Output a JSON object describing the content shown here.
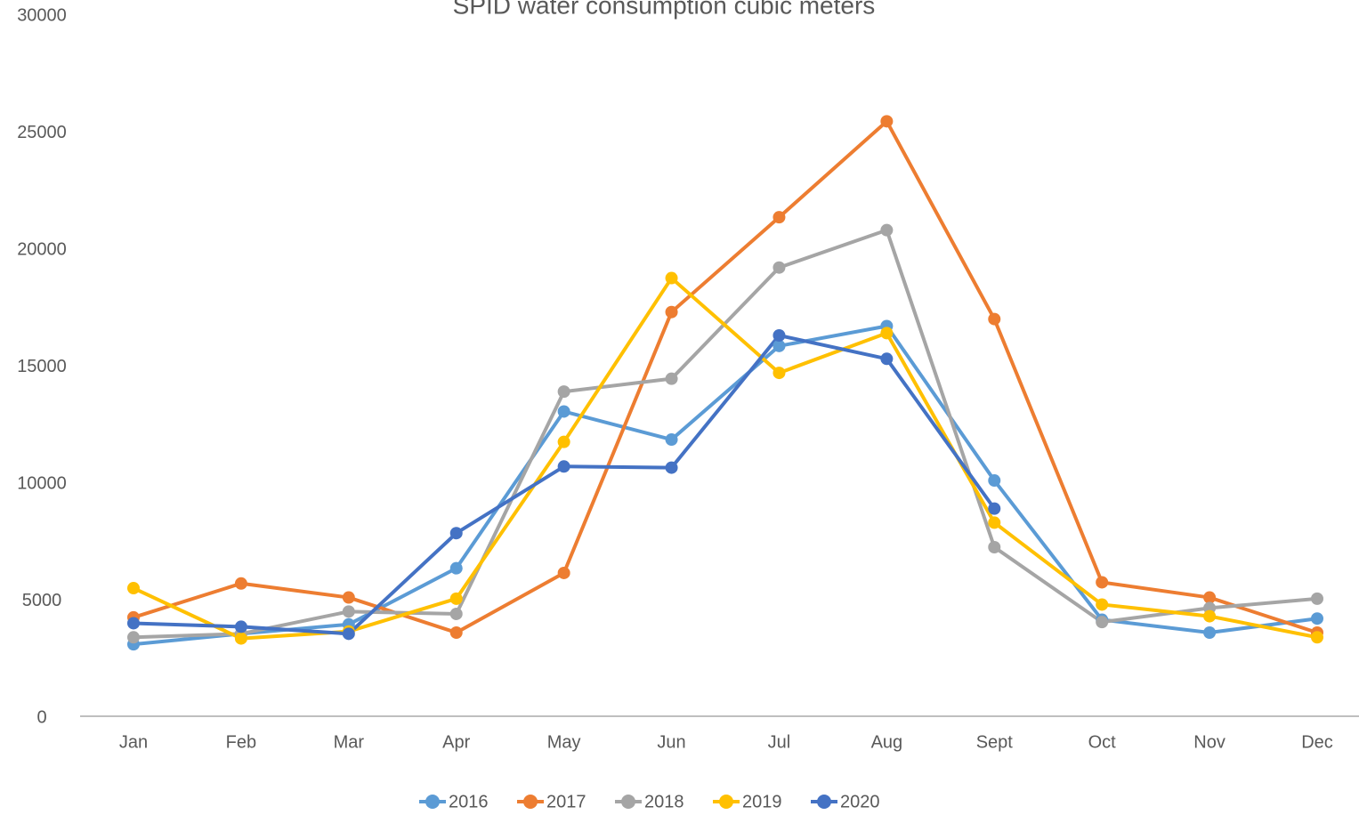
{
  "chart_data": {
    "type": "line",
    "title": "SPID water consumption cubic meters",
    "categories": [
      "Jan",
      "Feb",
      "Mar",
      "Apr",
      "May",
      "Jun",
      "Jul",
      "Aug",
      "Sept",
      "Oct",
      "Nov",
      "Dec"
    ],
    "series": [
      {
        "name": "2016",
        "color": "#5b9bd5",
        "values": [
          3150,
          3600,
          4000,
          6400,
          13100,
          11900,
          15900,
          16750,
          10150,
          4200,
          3650,
          4250
        ]
      },
      {
        "name": "2017",
        "color": "#ed7d31",
        "values": [
          4300,
          5750,
          5150,
          3650,
          6200,
          17350,
          21400,
          25500,
          17050,
          5800,
          5150,
          3650
        ]
      },
      {
        "name": "2018",
        "color": "#a5a5a5",
        "values": [
          3450,
          3600,
          4550,
          4450,
          13950,
          14500,
          19250,
          20850,
          7300,
          4100,
          4700,
          5100
        ]
      },
      {
        "name": "2019",
        "color": "#ffc000",
        "values": [
          5550,
          3400,
          3700,
          5100,
          11800,
          18800,
          14750,
          16450,
          8350,
          4850,
          4350,
          3450
        ]
      },
      {
        "name": "2020",
        "color": "#4472c4",
        "values": [
          4050,
          3900,
          3600,
          7900,
          10750,
          10700,
          16350,
          15350,
          8950,
          null,
          null,
          null
        ]
      }
    ],
    "ylim": [
      0,
      30000
    ],
    "yticks": [
      0,
      5000,
      10000,
      15000,
      20000,
      25000,
      30000
    ],
    "grid": false,
    "legend": "bottom"
  }
}
